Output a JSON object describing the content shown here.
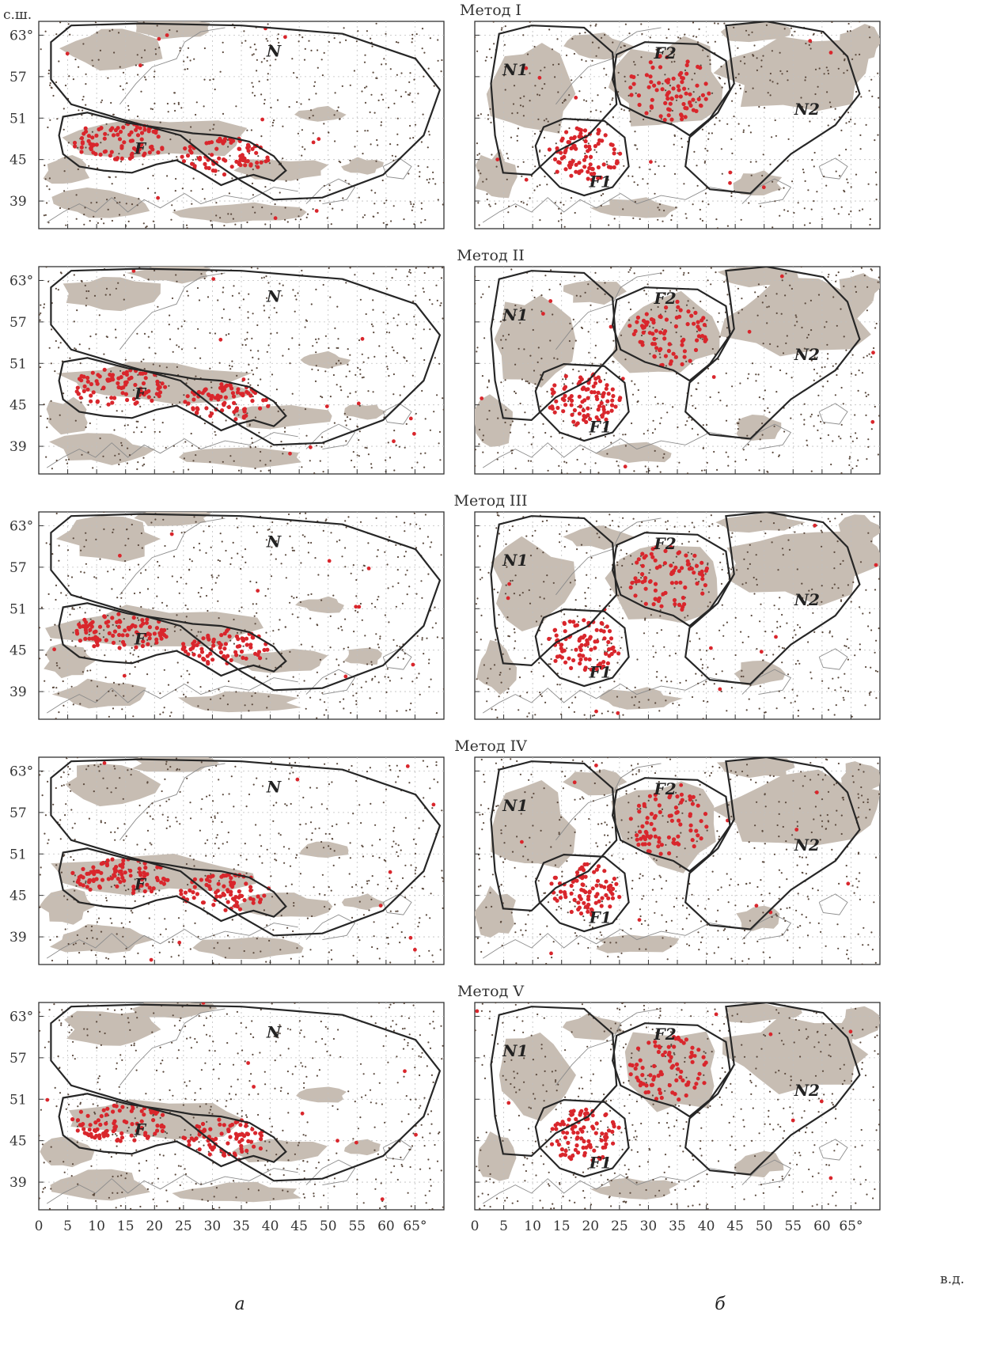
{
  "figure": {
    "panel_captions": [
      "а",
      "б"
    ],
    "lat_unit": "с.ш.",
    "lon_unit": "в.д.",
    "y_ticks": [
      "63°",
      "57",
      "51",
      "45",
      "39"
    ],
    "x_ticks_left": [
      "0",
      "5",
      "10",
      "15",
      "20",
      "25",
      "30",
      "35",
      "40",
      "45",
      "50",
      "55",
      "60",
      "65°"
    ],
    "x_ticks_right": [
      "0",
      "5",
      "10",
      "15",
      "20",
      "25",
      "30",
      "35",
      "40",
      "45",
      "50",
      "55",
      "60",
      "65°"
    ]
  },
  "map_extent": {
    "lon": [
      0,
      70
    ],
    "lat": [
      35,
      65
    ]
  },
  "colors": {
    "cluster_points": "#d9262c",
    "stations": "#5b4a3e",
    "shading": "#c7bdb3",
    "boundary": "#262626"
  },
  "methods": [
    {
      "title": "Метод I",
      "left_region_labels": [
        "N",
        "F"
      ],
      "right_region_labels": [
        "N1",
        "F2",
        "N2",
        "F1"
      ]
    },
    {
      "title": "Метод II",
      "left_region_labels": [
        "N",
        "F"
      ],
      "right_region_labels": [
        "N1",
        "F2",
        "N2",
        "F1"
      ]
    },
    {
      "title": "Метод III",
      "left_region_labels": [
        "N",
        "F"
      ],
      "right_region_labels": [
        "N1",
        "F2",
        "N2",
        "F1"
      ]
    },
    {
      "title": "Метод IV",
      "left_region_labels": [
        "N",
        "F"
      ],
      "right_region_labels": [
        "N1",
        "F2",
        "N2",
        "F1"
      ]
    },
    {
      "title": "Метод V",
      "left_region_labels": [
        "N",
        "F"
      ],
      "right_region_labels": [
        "N1",
        "F2",
        "N2",
        "F1"
      ]
    }
  ]
}
